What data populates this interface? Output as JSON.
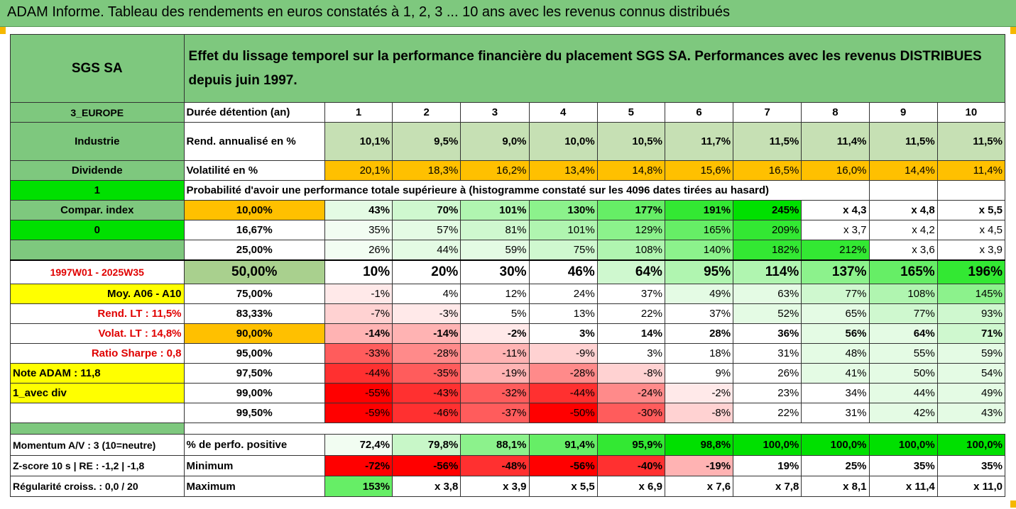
{
  "banner": "ADAM Informe. Tableau des rendements en euros constatés à 1, 2, 3 ... 10 ans avec les revenus connus distribués",
  "header": {
    "company": "SGS SA",
    "description": "Effet du lissage temporel sur la performance financière du placement SGS SA. Performances avec les revenus DISTRIBUES depuis juin 1997."
  },
  "left": {
    "region": "3_EUROPE",
    "sector": "Industrie",
    "dividend": "Dividende",
    "value1": "1",
    "compar": "Compar. index",
    "value0": "0",
    "period": "1997W01 - 2025W35",
    "moy": "Moy. A06 - A10",
    "rend_lt": "Rend. LT :   11,5%",
    "volat_lt": "Volat. LT :   14,8%",
    "sharpe": "Ratio Sharpe :   0,8",
    "note": "Note ADAM : 11,8",
    "avec_div": "1_avec div",
    "momentum": "Momentum A/V : 3 (10=neutre)",
    "zscore": "Z-score 10 s  |  RE : -1,2  |  -1,8",
    "regularite": "Régularité croiss. : 0,0 / 20"
  },
  "labels": {
    "duree": "Durée détention (an)",
    "rend": "Rend. annualisé en %",
    "volat": "Volatilité en %",
    "proba": "Probabilité d'avoir une performance totale supérieure à (histogramme constaté sur les 4096 dates tirées au hasard)",
    "pos": "% de perfo. positive",
    "min": "Minimum",
    "max": "Maximum"
  },
  "years": [
    "1",
    "2",
    "3",
    "4",
    "5",
    "6",
    "7",
    "8",
    "9",
    "10"
  ],
  "rend": [
    "10,1%",
    "9,5%",
    "9,0%",
    "10,0%",
    "10,5%",
    "11,7%",
    "11,5%",
    "11,4%",
    "11,5%",
    "11,5%"
  ],
  "volat": [
    "20,1%",
    "18,3%",
    "16,2%",
    "13,4%",
    "14,8%",
    "15,6%",
    "16,5%",
    "16,0%",
    "14,4%",
    "11,4%"
  ],
  "rows": [
    {
      "pct": "10,00%",
      "vals": [
        "43%",
        "70%",
        "101%",
        "130%",
        "177%",
        "191%",
        "245%",
        "x 4,3",
        "x 4,8",
        "x 5,5"
      ]
    },
    {
      "pct": "16,67%",
      "vals": [
        "35%",
        "57%",
        "81%",
        "101%",
        "129%",
        "165%",
        "209%",
        "x 3,7",
        "x 4,2",
        "x 4,5"
      ]
    },
    {
      "pct": "25,00%",
      "vals": [
        "26%",
        "44%",
        "59%",
        "75%",
        "108%",
        "140%",
        "182%",
        "212%",
        "x 3,6",
        "x 3,9"
      ]
    },
    {
      "pct": "50,00%",
      "vals": [
        "10%",
        "20%",
        "30%",
        "46%",
        "64%",
        "95%",
        "114%",
        "137%",
        "165%",
        "196%"
      ]
    },
    {
      "pct": "75,00%",
      "vals": [
        "-1%",
        "4%",
        "12%",
        "24%",
        "37%",
        "49%",
        "63%",
        "77%",
        "108%",
        "145%"
      ]
    },
    {
      "pct": "83,33%",
      "vals": [
        "-7%",
        "-3%",
        "5%",
        "13%",
        "22%",
        "37%",
        "52%",
        "65%",
        "77%",
        "93%"
      ]
    },
    {
      "pct": "90,00%",
      "vals": [
        "-14%",
        "-14%",
        "-2%",
        "3%",
        "14%",
        "28%",
        "36%",
        "56%",
        "64%",
        "71%"
      ]
    },
    {
      "pct": "95,00%",
      "vals": [
        "-33%",
        "-28%",
        "-11%",
        "-9%",
        "3%",
        "18%",
        "31%",
        "48%",
        "55%",
        "59%"
      ]
    },
    {
      "pct": "97,50%",
      "vals": [
        "-44%",
        "-35%",
        "-19%",
        "-28%",
        "-8%",
        "9%",
        "26%",
        "41%",
        "50%",
        "54%"
      ]
    },
    {
      "pct": "99,00%",
      "vals": [
        "-55%",
        "-43%",
        "-32%",
        "-44%",
        "-24%",
        "-2%",
        "23%",
        "34%",
        "44%",
        "49%"
      ]
    },
    {
      "pct": "99,50%",
      "vals": [
        "-59%",
        "-46%",
        "-37%",
        "-50%",
        "-30%",
        "-8%",
        "22%",
        "31%",
        "42%",
        "43%"
      ]
    }
  ],
  "pos": [
    "72,4%",
    "79,8%",
    "88,1%",
    "91,4%",
    "95,9%",
    "98,8%",
    "100,0%",
    "100,0%",
    "100,0%",
    "100,0%"
  ],
  "min": [
    "-72%",
    "-56%",
    "-48%",
    "-56%",
    "-40%",
    "-19%",
    "19%",
    "25%",
    "35%",
    "35%"
  ],
  "max": [
    "153%",
    "x 3,8",
    "x 3,9",
    "x 5,5",
    "x 6,9",
    "x 7,6",
    "x 7,8",
    "x 8,1",
    "x 11,4",
    "x 11,0"
  ],
  "colors": {
    "header_green": "#7ec87e",
    "bright_green": "#00e000",
    "orange": "#ffc000",
    "yellow": "#ffff00",
    "pale_green": "#c6e0b4",
    "red_text": "#e00000"
  }
}
